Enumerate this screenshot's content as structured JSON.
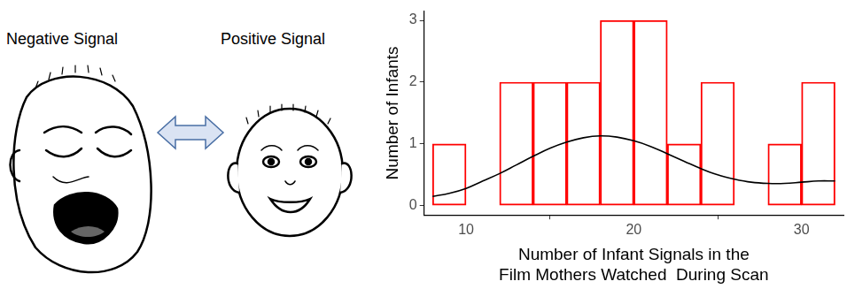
{
  "chart_data": {
    "type": "histogram",
    "y_label": "Number of Infants",
    "x_label": [
      "Number of Infant Signals in the",
      "Film Mothers Watched  During Scan"
    ],
    "bins": [
      8,
      10,
      12,
      14,
      16,
      18,
      20,
      22,
      24,
      26,
      28,
      30,
      32
    ],
    "counts": [
      1,
      0,
      2,
      2,
      2,
      3,
      3,
      1,
      2,
      0,
      1,
      2
    ],
    "color": "#ff0000",
    "density": {
      "type": "line",
      "color": "#000000",
      "x": [
        8,
        9,
        10,
        11,
        12,
        13,
        14,
        15,
        16,
        17,
        18,
        19,
        20,
        21,
        22,
        23,
        24,
        25,
        26,
        27,
        28,
        29,
        30,
        31,
        32
      ],
      "values": [
        0.15,
        0.2,
        0.28,
        0.4,
        0.52,
        0.66,
        0.8,
        0.93,
        1.03,
        1.1,
        1.13,
        1.11,
        1.05,
        0.96,
        0.84,
        0.72,
        0.6,
        0.5,
        0.43,
        0.38,
        0.36,
        0.36,
        0.38,
        0.4,
        0.4
      ]
    },
    "xlim": [
      7.5,
      32.5
    ],
    "xticks": [
      10,
      20,
      30
    ],
    "ylim": [
      -0.15,
      3.15
    ],
    "yticks": [
      0,
      1,
      2,
      3
    ],
    "grid": false
  },
  "illustration": {
    "negative_label": "Negative Signal",
    "positive_label": "Positive Signal"
  }
}
